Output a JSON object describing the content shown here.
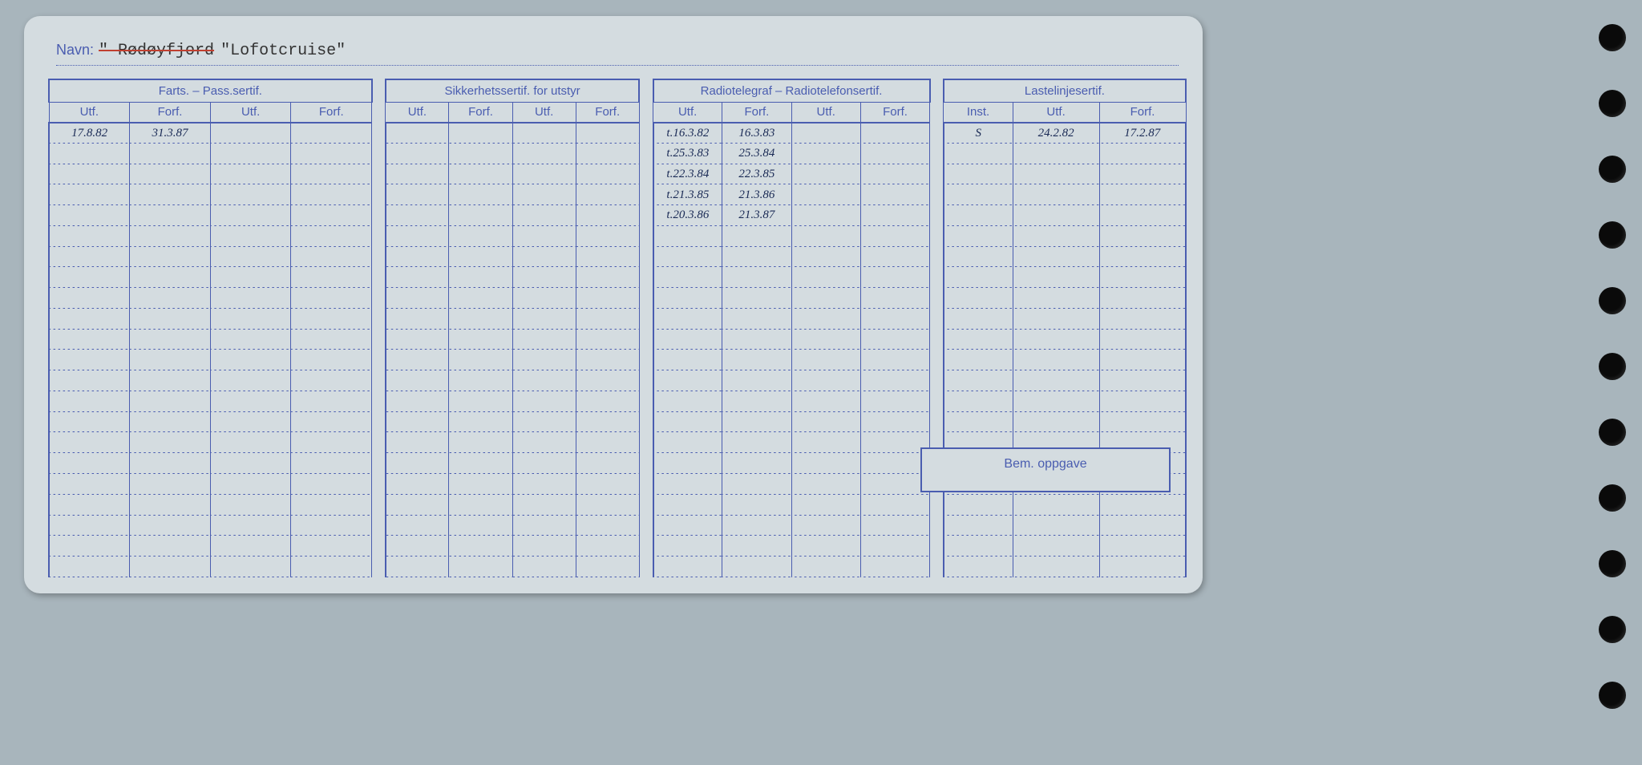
{
  "navn": {
    "label": "Navn:",
    "crossed": "\" Rødøyfjord",
    "current": "\"Lofotcruise\""
  },
  "groups": [
    {
      "title": "Farts. – Pass.sertif.",
      "subs": [
        "Utf.",
        "Forf.",
        "Utf.",
        "Forf."
      ]
    },
    {
      "title": "Sikkerhetssertif. for utstyr",
      "subs": [
        "Utf.",
        "Forf.",
        "Utf.",
        "Forf."
      ]
    },
    {
      "title": "Radiotelegraf – Radiotelefonsertif.",
      "subs": [
        "Utf.",
        "Forf.",
        "Utf.",
        "Forf."
      ]
    },
    {
      "title": "Lastelinjesertif.",
      "subs": [
        "Inst.",
        "Utf.",
        "Forf."
      ]
    }
  ],
  "rows": [
    {
      "c0": "17.8.82",
      "c1": "31.3.87",
      "c2": "",
      "c3": "",
      "c4": "",
      "c5": "",
      "c6": "",
      "c7": "",
      "c8": "t.16.3.82",
      "c9": "16.3.83",
      "c10": "",
      "c11": "",
      "c12": "S",
      "c13": "24.2.82",
      "c14": "17.2.87"
    },
    {
      "c0": "",
      "c1": "",
      "c2": "",
      "c3": "",
      "c4": "",
      "c5": "",
      "c6": "",
      "c7": "",
      "c8": "t.25.3.83",
      "c9": "25.3.84",
      "c10": "",
      "c11": "",
      "c12": "",
      "c13": "",
      "c14": ""
    },
    {
      "c0": "",
      "c1": "",
      "c2": "",
      "c3": "",
      "c4": "",
      "c5": "",
      "c6": "",
      "c7": "",
      "c8": "t.22.3.84",
      "c9": "22.3.85",
      "c10": "",
      "c11": "",
      "c12": "",
      "c13": "",
      "c14": ""
    },
    {
      "c0": "",
      "c1": "",
      "c2": "",
      "c3": "",
      "c4": "",
      "c5": "",
      "c6": "",
      "c7": "",
      "c8": "t.21.3.85",
      "c9": "21.3.86",
      "c10": "",
      "c11": "",
      "c12": "",
      "c13": "",
      "c14": ""
    },
    {
      "c0": "",
      "c1": "",
      "c2": "",
      "c3": "",
      "c4": "",
      "c5": "",
      "c6": "",
      "c7": "",
      "c8": "t.20.3.86",
      "c9": "21.3.87",
      "c10": "",
      "c11": "",
      "c12": "",
      "c13": "",
      "c14": ""
    },
    {
      "c0": "",
      "c1": "",
      "c2": "",
      "c3": "",
      "c4": "",
      "c5": "",
      "c6": "",
      "c7": "",
      "c8": "",
      "c9": "",
      "c10": "",
      "c11": "",
      "c12": "",
      "c13": "",
      "c14": ""
    },
    {
      "c0": "",
      "c1": "",
      "c2": "",
      "c3": "",
      "c4": "",
      "c5": "",
      "c6": "",
      "c7": "",
      "c8": "",
      "c9": "",
      "c10": "",
      "c11": "",
      "c12": "",
      "c13": "",
      "c14": ""
    },
    {
      "c0": "",
      "c1": "",
      "c2": "",
      "c3": "",
      "c4": "",
      "c5": "",
      "c6": "",
      "c7": "",
      "c8": "",
      "c9": "",
      "c10": "",
      "c11": "",
      "c12": "",
      "c13": "",
      "c14": ""
    },
    {
      "c0": "",
      "c1": "",
      "c2": "",
      "c3": "",
      "c4": "",
      "c5": "",
      "c6": "",
      "c7": "",
      "c8": "",
      "c9": "",
      "c10": "",
      "c11": "",
      "c12": "",
      "c13": "",
      "c14": ""
    },
    {
      "c0": "",
      "c1": "",
      "c2": "",
      "c3": "",
      "c4": "",
      "c5": "",
      "c6": "",
      "c7": "",
      "c8": "",
      "c9": "",
      "c10": "",
      "c11": "",
      "c12": "",
      "c13": "",
      "c14": ""
    },
    {
      "c0": "",
      "c1": "",
      "c2": "",
      "c3": "",
      "c4": "",
      "c5": "",
      "c6": "",
      "c7": "",
      "c8": "",
      "c9": "",
      "c10": "",
      "c11": "",
      "c12": "",
      "c13": "",
      "c14": ""
    },
    {
      "c0": "",
      "c1": "",
      "c2": "",
      "c3": "",
      "c4": "",
      "c5": "",
      "c6": "",
      "c7": "",
      "c8": "",
      "c9": "",
      "c10": "",
      "c11": "",
      "c12": "",
      "c13": "",
      "c14": ""
    },
    {
      "c0": "",
      "c1": "",
      "c2": "",
      "c3": "",
      "c4": "",
      "c5": "",
      "c6": "",
      "c7": "",
      "c8": "",
      "c9": "",
      "c10": "",
      "c11": "",
      "c12": "",
      "c13": "",
      "c14": ""
    },
    {
      "c0": "",
      "c1": "",
      "c2": "",
      "c3": "",
      "c4": "",
      "c5": "",
      "c6": "",
      "c7": "",
      "c8": "",
      "c9": "",
      "c10": "",
      "c11": "",
      "c12": "",
      "c13": "",
      "c14": ""
    },
    {
      "c0": "",
      "c1": "",
      "c2": "",
      "c3": "",
      "c4": "",
      "c5": "",
      "c6": "",
      "c7": "",
      "c8": "",
      "c9": "",
      "c10": "",
      "c11": "",
      "c12": "",
      "c13": "",
      "c14": ""
    },
    {
      "c0": "",
      "c1": "",
      "c2": "",
      "c3": "",
      "c4": "",
      "c5": "",
      "c6": "",
      "c7": "",
      "c8": "",
      "c9": "",
      "c10": "",
      "c11": "",
      "c12": "",
      "c13": "",
      "c14": ""
    },
    {
      "c0": "",
      "c1": "",
      "c2": "",
      "c3": "",
      "c4": "",
      "c5": "",
      "c6": "",
      "c7": "",
      "c8": "",
      "c9": "",
      "c10": "",
      "c11": "",
      "c12": "",
      "c13": "",
      "c14": ""
    },
    {
      "c0": "",
      "c1": "",
      "c2": "",
      "c3": "",
      "c4": "",
      "c5": "",
      "c6": "",
      "c7": "",
      "c8": "",
      "c9": "",
      "c10": "",
      "c11": "",
      "c12": "",
      "c13": "",
      "c14": ""
    },
    {
      "c0": "",
      "c1": "",
      "c2": "",
      "c3": "",
      "c4": "",
      "c5": "",
      "c6": "",
      "c7": "",
      "c8": "",
      "c9": "",
      "c10": "",
      "c11": "",
      "c12": "",
      "c13": "",
      "c14": ""
    },
    {
      "c0": "",
      "c1": "",
      "c2": "",
      "c3": "",
      "c4": "",
      "c5": "",
      "c6": "",
      "c7": "",
      "c8": "",
      "c9": "",
      "c10": "",
      "c11": "",
      "c12": "",
      "c13": "",
      "c14": ""
    },
    {
      "c0": "",
      "c1": "",
      "c2": "",
      "c3": "",
      "c4": "",
      "c5": "",
      "c6": "",
      "c7": "",
      "c8": "",
      "c9": "",
      "c10": "",
      "c11": "",
      "c12": "",
      "c13": "",
      "c14": ""
    },
    {
      "c0": "",
      "c1": "",
      "c2": "",
      "c3": "",
      "c4": "",
      "c5": "",
      "c6": "",
      "c7": "",
      "c8": "",
      "c9": "",
      "c10": "",
      "c11": "",
      "c12": "",
      "c13": "",
      "c14": ""
    }
  ],
  "bem_label": "Bem. oppgave",
  "colors": {
    "card_bg": "#d4dce0",
    "ink": "#4a5db0",
    "handwriting": "#1a2a55",
    "strike": "#c04030"
  }
}
